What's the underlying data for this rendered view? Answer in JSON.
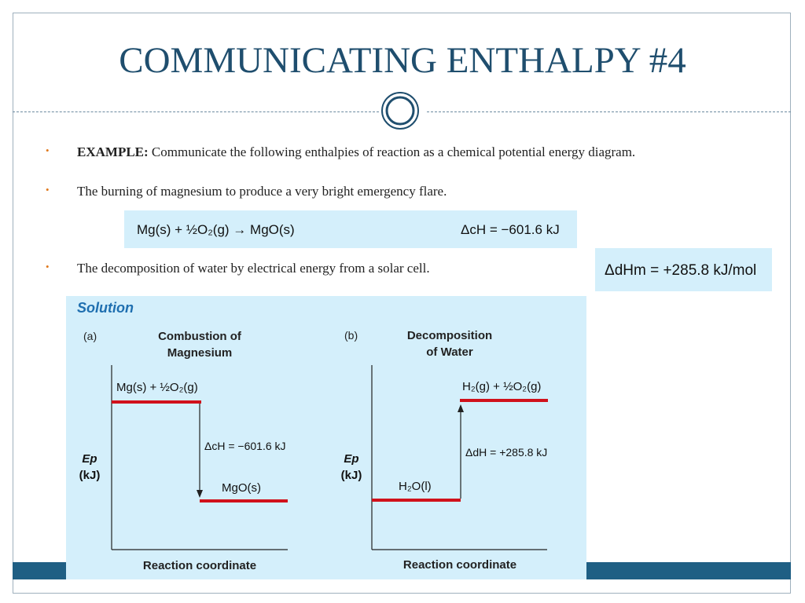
{
  "slide": {
    "title": "COMMUNICATING ENTHALPY #4"
  },
  "bullets": [
    {
      "bold": "EXAMPLE:",
      "text": " Communicate the following enthalpies of reaction as a chemical potential energy diagram."
    },
    {
      "bold": "",
      "text": "The burning of magnesium to produce a very bright emergency flare."
    },
    {
      "bold": "",
      "text": "The decomposition of water by electrical energy from a solar cell."
    }
  ],
  "bullet_marker": "•",
  "equations": {
    "mg_combustion": {
      "reaction": "Mg(s) + ½O₂(g) → MgO(s)",
      "enthalpy": "ΔcH = −601.6 kJ"
    },
    "water_decomposition": {
      "enthalpy": "ΔdHm = +285.8 kJ/mol"
    }
  },
  "solution": {
    "heading": "Solution",
    "panel_a": {
      "letter": "(a)",
      "title_line1": "Combustion of",
      "title_line2": "Magnesium",
      "reactants": "Mg(s) + ½O₂(g)",
      "products": "MgO(s)",
      "delta": "ΔcH = −601.6 kJ",
      "ylabel_line1": "Ep",
      "ylabel_line2": "(kJ)",
      "xlabel": "Reaction coordinate"
    },
    "panel_b": {
      "letter": "(b)",
      "title_line1": "Decomposition",
      "title_line2": "of Water",
      "reactants": "H₂O(l)",
      "products": "H₂(g) + ½O₂(g)",
      "delta": "ΔdH = +285.8 kJ",
      "ylabel_line1": "Ep",
      "ylabel_line2": "(kJ)",
      "xlabel": "Reaction coordinate"
    }
  },
  "colors": {
    "title": "#1f4e6e",
    "accent_bullet": "#e07a1f",
    "box_bg": "#d4effb",
    "level_line": "#d0111b",
    "band": "#1f5f84",
    "solution_heading": "#1f6fb0"
  }
}
